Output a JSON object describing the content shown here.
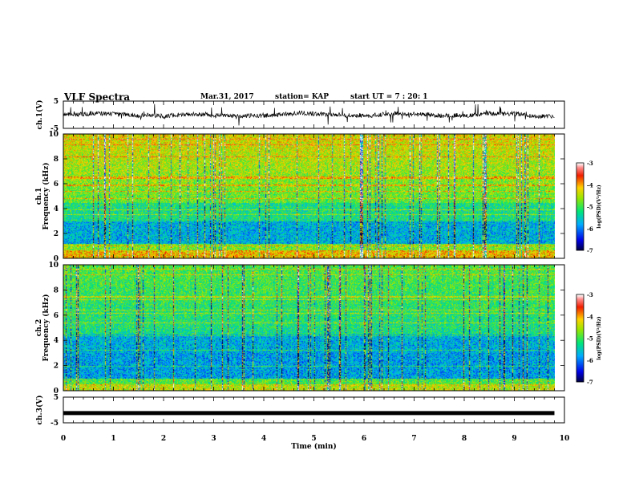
{
  "header": {
    "title": "VLF Spectra",
    "date": "Mar.31, 2017",
    "station": "station= KAP",
    "start": "start UT =  7 : 20: 1"
  },
  "colorbar": {
    "label": "log(PSD)(V²/Hz)",
    "ticks": [
      "-3",
      "-4",
      "-5",
      "-6",
      "-7"
    ]
  },
  "chart_data": [
    {
      "type": "line",
      "name": "ch1-waveform",
      "ylabel": "ch.1(V)",
      "ylim": [
        -5,
        5
      ],
      "yticks": [
        "5",
        "-5"
      ],
      "xlim": [
        0,
        10
      ],
      "style": "dense noisy waveform centred near 0 V, amplitude about 1 V"
    },
    {
      "type": "heatmap",
      "name": "ch1-spectrogram",
      "ylabel": "ch.1 Frequency (kHz)",
      "ylim": [
        0,
        10
      ],
      "yticks": [
        "10",
        "8",
        "6",
        "4",
        "2",
        "0"
      ],
      "xlim": [
        0,
        9.8
      ],
      "zlim": [
        -7,
        -3
      ],
      "zlabel": "log(PSD)(V²/Hz)"
    },
    {
      "type": "heatmap",
      "name": "ch2-spectrogram",
      "ylabel": "ch.2 Frequency (kHz)",
      "ylim": [
        0,
        10
      ],
      "yticks": [
        "10",
        "8",
        "6",
        "4",
        "2",
        "0"
      ],
      "xlim": [
        0,
        9.8
      ],
      "zlim": [
        -7,
        -3
      ],
      "zlabel": "log(PSD)(V²/Hz)"
    },
    {
      "type": "line",
      "name": "ch3-waveform",
      "ylabel": "ch.3(V)",
      "ylim": [
        -5,
        5
      ],
      "yticks": [
        "5",
        "-5"
      ],
      "xlim": [
        0,
        10
      ],
      "x": [
        0,
        9.8
      ],
      "y": [
        -1.2,
        -1.2
      ]
    }
  ],
  "xaxis": {
    "label": "Time  (min)",
    "range": [
      0,
      10
    ],
    "ticks": [
      "0",
      "1",
      "2",
      "3",
      "4",
      "5",
      "6",
      "7",
      "8",
      "9",
      "10"
    ]
  }
}
